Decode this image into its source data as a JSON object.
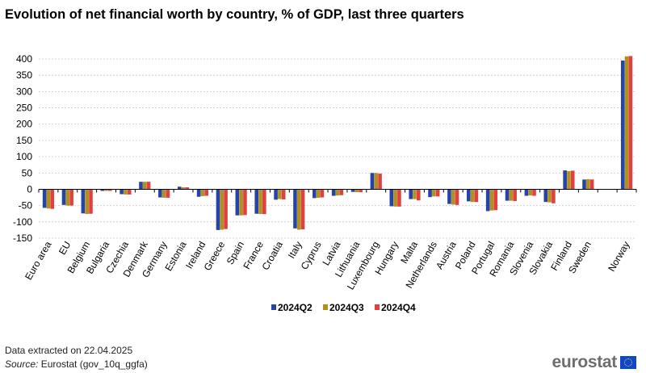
{
  "title": "Evolution of net financial worth by country, %  of GDP, last three quarters",
  "footer": {
    "extracted": "Data extracted  on 22.04.2025",
    "source_label": "Source:",
    "source_text": " Eurostat (gov_10q_ggfa)",
    "logo": "eurostat"
  },
  "colors": {
    "s1": "#2644a7",
    "s2": "#b09120",
    "s3": "#e04040",
    "grid": "#c8c8c8",
    "axis": "#000000"
  },
  "chart_data": {
    "type": "bar",
    "title": "Evolution of net financial worth by country, %  of GDP, last three quarters",
    "xlabel": "",
    "ylabel": "",
    "ylim": [
      -150,
      400
    ],
    "yticks": [
      -150,
      -100,
      -50,
      0,
      50,
      100,
      150,
      200,
      250,
      300,
      350,
      400
    ],
    "categories": [
      "Euro area",
      "EU",
      "Belgium",
      "Bulgaria",
      "Czechia",
      "Denmark",
      "Germany",
      "Estonia",
      "Ireland",
      "Greece",
      "Spain",
      "France",
      "Croatia",
      "Italy",
      "Cyprus",
      "Latvia",
      "Lithuania",
      "Luxembourg",
      "Hungary",
      "Malta",
      "Netherlands",
      "Austria",
      "Poland",
      "Portugal",
      "Romania",
      "Slovenia",
      "Slovakia",
      "Finland",
      "Sweden",
      "",
      "Norway"
    ],
    "series": [
      {
        "name": "2024Q2",
        "values": [
          -57,
          -48,
          -74,
          -5,
          -15,
          23,
          -25,
          8,
          -23,
          -125,
          -80,
          -75,
          -32,
          -120,
          -27,
          -20,
          -8,
          50,
          -52,
          -30,
          -24,
          -45,
          -37,
          -67,
          -35,
          -20,
          -39,
          58,
          30,
          null,
          395
        ]
      },
      {
        "name": "2024Q3",
        "values": [
          -59,
          -50,
          -76,
          -5,
          -16,
          23,
          -26,
          6,
          -21,
          -124,
          -80,
          -76,
          -30,
          -124,
          -26,
          -19,
          -9,
          50,
          -53,
          -30,
          -22,
          -47,
          -39,
          -65,
          -35,
          -19,
          -40,
          56,
          31,
          null,
          408
        ]
      },
      {
        "name": "2024Q4",
        "values": [
          -60,
          -50,
          -75,
          -5,
          -16,
          23,
          -26,
          6,
          -20,
          -122,
          -79,
          -76,
          -31,
          -123,
          -25,
          -18,
          -9,
          48,
          -53,
          -34,
          -22,
          -48,
          -39,
          -64,
          -36,
          -20,
          -43,
          57,
          30,
          null,
          409
        ]
      }
    ],
    "legend": {
      "position": "bottom-center",
      "entries": [
        "2024Q2",
        "2024Q3",
        "2024Q4"
      ]
    },
    "grid": true
  }
}
